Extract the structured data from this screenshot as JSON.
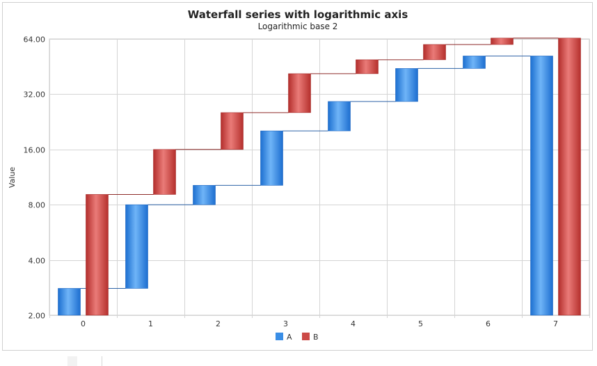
{
  "chart_data": {
    "type": "bar",
    "subtype": "waterfall",
    "title": "Waterfall series with logarithmic axis",
    "subtitle": "Logarithmic base 2",
    "xlabel": "",
    "ylabel": "Value",
    "y_scale": "log2",
    "ylim": [
      2,
      64
    ],
    "y_ticks": [
      "2.00",
      "4.00",
      "8.00",
      "16.00",
      "32.00",
      "64.00"
    ],
    "categories": [
      "0",
      "1",
      "2",
      "3",
      "4",
      "5",
      "6",
      "7"
    ],
    "grid": true,
    "legend_position": "bottom",
    "series": [
      {
        "name": "A",
        "color": "#3a8ee6",
        "segments": [
          [
            2.0,
            2.8
          ],
          [
            2.8,
            8.0
          ],
          [
            8.0,
            10.2
          ],
          [
            10.2,
            20.2
          ],
          [
            20.2,
            29.2
          ],
          [
            29.2,
            44.2
          ],
          [
            44.2,
            51.7
          ],
          [
            2.0,
            51.7
          ]
        ]
      },
      {
        "name": "B",
        "color": "#cc4a47",
        "segments": [
          [
            2.0,
            9.1
          ],
          [
            9.1,
            16.0
          ],
          [
            16.0,
            25.4
          ],
          [
            25.4,
            41.4
          ],
          [
            41.4,
            49.3
          ],
          [
            49.3,
            59.7
          ],
          [
            59.7,
            64.7
          ],
          [
            2.0,
            64.7
          ]
        ]
      }
    ]
  }
}
